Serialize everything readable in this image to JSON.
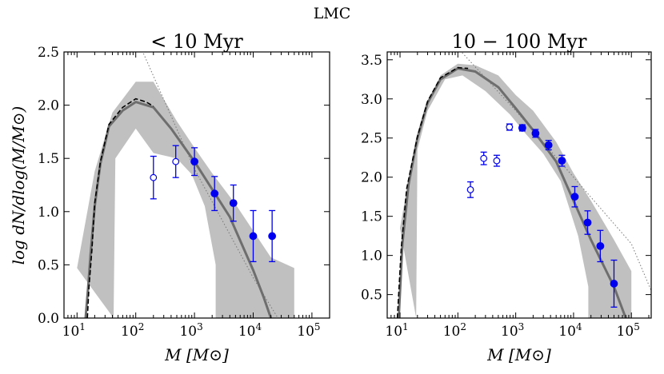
{
  "figure": {
    "suptitle": "LMC"
  },
  "chart_data": [
    {
      "type": "line",
      "title": "< 10 Myr",
      "xlabel": "M [M⊙]",
      "ylabel": "log dN/dlog(M/M⊙)",
      "xscale": "log",
      "xlim": [
        6,
        200000
      ],
      "ylim": [
        0,
        2.5
      ],
      "xticks": [
        {
          "value": 10,
          "base": "10",
          "exp": "1"
        },
        {
          "value": 100,
          "base": "10",
          "exp": "2"
        },
        {
          "value": 1000,
          "base": "10",
          "exp": "3"
        },
        {
          "value": 10000,
          "base": "10",
          "exp": "4"
        },
        {
          "value": 100000,
          "base": "10",
          "exp": "5"
        }
      ],
      "yticks": [
        "0.0",
        "0.5",
        "1.0",
        "1.5",
        "2.0",
        "2.5"
      ],
      "colors": {
        "points": "#0000ee",
        "model": "#6e6e6e",
        "band": "#c0c0c0",
        "dashed": "#000000",
        "dotted": "#777777"
      },
      "band": {
        "upper": [
          [
            10,
            0.47
          ],
          [
            20,
            1.38
          ],
          [
            40,
            1.93
          ],
          [
            100,
            2.22
          ],
          [
            200,
            2.22
          ],
          [
            500,
            1.85
          ],
          [
            1000,
            1.6
          ],
          [
            2000,
            1.36
          ],
          [
            5000,
            1.07
          ],
          [
            10000,
            0.82
          ],
          [
            20000,
            0.57
          ],
          [
            50000,
            0.47
          ]
        ],
        "lower": [
          [
            50000,
            0
          ],
          [
            2300,
            0
          ],
          [
            2300,
            0.5
          ],
          [
            1500,
            1.05
          ],
          [
            900,
            1.35
          ],
          [
            500,
            1.5
          ],
          [
            200,
            1.55
          ],
          [
            100,
            1.78
          ],
          [
            45,
            1.5
          ],
          [
            42,
            0
          ]
        ]
      },
      "model": [
        [
          14,
          0
        ],
        [
          15.5,
          0.3
        ],
        [
          17,
          0.6
        ],
        [
          20,
          1.05
        ],
        [
          25,
          1.45
        ],
        [
          35,
          1.8
        ],
        [
          60,
          1.95
        ],
        [
          100,
          2.03
        ],
        [
          200,
          1.98
        ],
        [
          400,
          1.78
        ],
        [
          1000,
          1.47
        ],
        [
          2000,
          1.21
        ],
        [
          4000,
          0.95
        ],
        [
          10000,
          0.45
        ],
        [
          15000,
          0.2
        ],
        [
          20000,
          0
        ]
      ],
      "dashed": [
        [
          15,
          0
        ],
        [
          16,
          0.3
        ],
        [
          18,
          0.65
        ],
        [
          20,
          1.08
        ],
        [
          25,
          1.47
        ],
        [
          35,
          1.82
        ],
        [
          60,
          1.98
        ],
        [
          100,
          2.06
        ],
        [
          150,
          2.03
        ],
        [
          200,
          1.99
        ]
      ],
      "dotted": [
        [
          100,
          2.65
        ],
        [
          1000,
          1.4
        ],
        [
          10000,
          0.38
        ],
        [
          30000,
          -0.05
        ]
      ],
      "points_open": [
        {
          "x": 200,
          "y": 1.32,
          "yerr": 0.2
        },
        {
          "x": 480,
          "y": 1.47,
          "yerr": 0.15
        }
      ],
      "points_filled": [
        {
          "x": 1000,
          "y": 1.47,
          "yerr": 0.13
        },
        {
          "x": 2200,
          "y": 1.17,
          "yerr": 0.16
        },
        {
          "x": 4600,
          "y": 1.08,
          "yerr": 0.17
        },
        {
          "x": 10000,
          "y": 0.77,
          "yerr": 0.24
        },
        {
          "x": 21000,
          "y": 0.77,
          "yerr": 0.24
        }
      ]
    },
    {
      "type": "line",
      "title": "10 − 100 Myr",
      "xlabel": "M [M⊙]",
      "ylabel": "",
      "xscale": "log",
      "xlim": [
        6,
        220000
      ],
      "ylim": [
        0.2,
        3.6
      ],
      "xticks": [
        {
          "value": 10,
          "base": "10",
          "exp": "1"
        },
        {
          "value": 100,
          "base": "10",
          "exp": "2"
        },
        {
          "value": 1000,
          "base": "10",
          "exp": "3"
        },
        {
          "value": 10000,
          "base": "10",
          "exp": "4"
        },
        {
          "value": 100000,
          "base": "10",
          "exp": "5"
        }
      ],
      "yticks": [
        "0.5",
        "1.0",
        "1.5",
        "2.0",
        "2.5",
        "3.0",
        "3.5"
      ],
      "colors": {
        "points": "#0000ee",
        "model": "#6e6e6e",
        "band": "#c0c0c0",
        "dashed": "#000000",
        "dotted": "#777777"
      },
      "band": {
        "upper": [
          [
            10,
            1.35
          ],
          [
            15,
            2.1
          ],
          [
            20,
            2.5
          ],
          [
            30,
            2.95
          ],
          [
            50,
            3.3
          ],
          [
            100,
            3.45
          ],
          [
            200,
            3.43
          ],
          [
            500,
            3.3
          ],
          [
            1000,
            3.05
          ],
          [
            2000,
            2.85
          ],
          [
            5000,
            2.45
          ],
          [
            10000,
            2.05
          ],
          [
            20000,
            1.7
          ],
          [
            50000,
            1.2
          ],
          [
            100000,
            0.8
          ]
        ],
        "lower": [
          [
            100000,
            0.2
          ],
          [
            18000,
            0.2
          ],
          [
            18000,
            0.6
          ],
          [
            12000,
            1.25
          ],
          [
            6000,
            1.95
          ],
          [
            3000,
            2.3
          ],
          [
            1500,
            2.55
          ],
          [
            800,
            2.8
          ],
          [
            300,
            3.1
          ],
          [
            120,
            3.3
          ],
          [
            60,
            3.25
          ],
          [
            30,
            2.85
          ],
          [
            20,
            2.35
          ],
          [
            19,
            0.2
          ]
        ]
      },
      "model": [
        [
          9.5,
          0.2
        ],
        [
          11,
          1.15
        ],
        [
          14,
          1.9
        ],
        [
          20,
          2.5
        ],
        [
          30,
          2.95
        ],
        [
          50,
          3.25
        ],
        [
          100,
          3.39
        ],
        [
          200,
          3.35
        ],
        [
          500,
          3.15
        ],
        [
          1000,
          2.88
        ],
        [
          2000,
          2.6
        ],
        [
          5000,
          2.2
        ],
        [
          10000,
          1.7
        ],
        [
          20000,
          1.2
        ],
        [
          50000,
          0.6
        ],
        [
          80000,
          0.2
        ]
      ],
      "dashed": [
        [
          9,
          0.2
        ],
        [
          10.5,
          1.1
        ],
        [
          13,
          1.85
        ],
        [
          20,
          2.52
        ],
        [
          30,
          2.97
        ],
        [
          50,
          3.27
        ],
        [
          100,
          3.4
        ],
        [
          150,
          3.39
        ]
      ],
      "dotted": [
        [
          100,
          3.65
        ],
        [
          1000,
          2.85
        ],
        [
          10000,
          2.0
        ],
        [
          100000,
          1.15
        ],
        [
          220000,
          0.55
        ]
      ],
      "points_open": [
        {
          "x": 165,
          "y": 1.84,
          "yerr": 0.1
        },
        {
          "x": 280,
          "y": 2.24,
          "yerr": 0.08
        },
        {
          "x": 470,
          "y": 2.21,
          "yerr": 0.07
        },
        {
          "x": 780,
          "y": 2.64,
          "yerr": 0.04
        }
      ],
      "points_filled": [
        {
          "x": 1300,
          "y": 2.63,
          "yerr": 0.04
        },
        {
          "x": 2200,
          "y": 2.56,
          "yerr": 0.05
        },
        {
          "x": 3700,
          "y": 2.41,
          "yerr": 0.06
        },
        {
          "x": 6300,
          "y": 2.21,
          "yerr": 0.07
        },
        {
          "x": 10500,
          "y": 1.75,
          "yerr": 0.13
        },
        {
          "x": 17500,
          "y": 1.42,
          "yerr": 0.15
        },
        {
          "x": 29000,
          "y": 1.12,
          "yerr": 0.2
        },
        {
          "x": 50000,
          "y": 0.64,
          "yerr": 0.3
        }
      ]
    }
  ]
}
